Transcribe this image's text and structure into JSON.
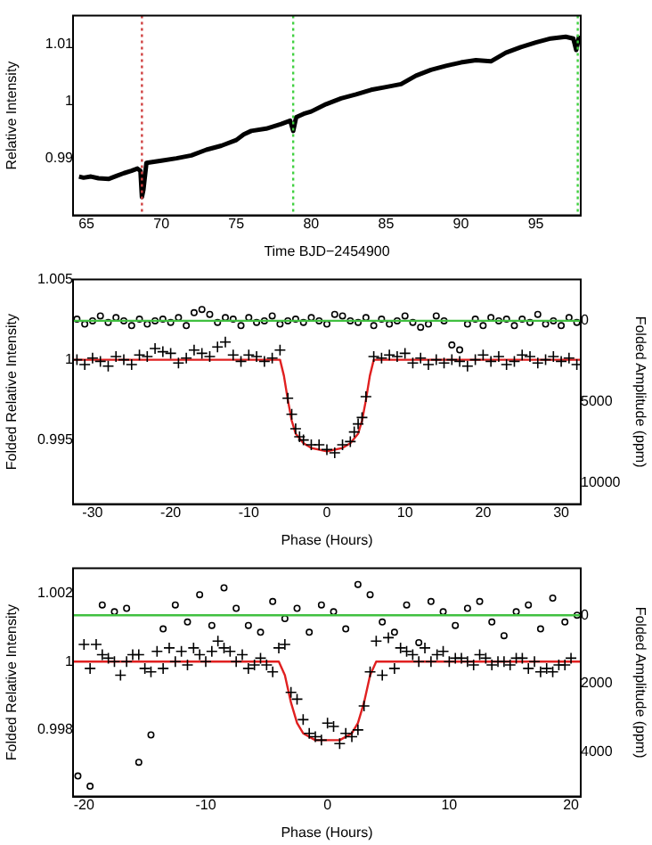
{
  "chart_data": [
    {
      "type": "line",
      "xlabel": "Time BJD−2454900",
      "ylabel": "Relative Intensity",
      "xlim": [
        64.1,
        98
      ],
      "ylim": [
        0.98,
        1.015
      ],
      "xticks": [
        65,
        70,
        75,
        80,
        85,
        90,
        95
      ],
      "yticks": [
        0.99,
        1,
        1.01
      ],
      "series": [
        {
          "color": "#000000",
          "x": [
            64.5,
            64.8,
            65.3,
            65.8,
            66.5,
            67,
            67.5,
            68,
            68.4,
            68.6,
            68.7,
            68.8,
            69,
            69.5,
            70,
            71,
            72,
            73,
            74,
            75,
            75.5,
            76,
            77,
            78,
            78.6,
            78.8,
            79,
            79.5,
            80,
            81,
            82,
            83,
            84,
            85,
            86,
            87,
            88,
            89,
            90,
            91,
            92,
            93,
            94,
            95,
            96,
            97,
            97.5,
            97.7,
            97.9
          ],
          "values": [
            0.9868,
            0.9866,
            0.9868,
            0.9865,
            0.9864,
            0.9869,
            0.9874,
            0.9878,
            0.9882,
            0.9878,
            0.9832,
            0.9845,
            0.9892,
            0.9894,
            0.9896,
            0.99,
            0.9905,
            0.9915,
            0.9922,
            0.9932,
            0.9942,
            0.9948,
            0.9952,
            0.996,
            0.9966,
            0.9948,
            0.9972,
            0.9978,
            0.9982,
            0.9995,
            1.0005,
            1.0012,
            1.002,
            1.0025,
            1.003,
            1.0045,
            1.0055,
            1.0062,
            1.0068,
            1.0072,
            1.007,
            1.0085,
            1.0095,
            1.0103,
            1.011,
            1.0113,
            1.011,
            1.009,
            1.0115
          ]
        }
      ],
      "ref_lines": [
        {
          "axis": "x",
          "value": 68.7,
          "color": "#d04040",
          "line_style": "dotted"
        },
        {
          "axis": "x",
          "value": 78.8,
          "color": "#40d040",
          "line_style": "dotted"
        },
        {
          "axis": "x",
          "value": 97.8,
          "color": "#40d040",
          "line_style": "dotted"
        }
      ]
    },
    {
      "type": "scatter",
      "xlabel": "Phase (Hours)",
      "ylabel": "Folded Relative Intensity",
      "y2label": "Folded Amplitude (ppm)",
      "xlim": [
        -32.5,
        32.5
      ],
      "ylim": [
        0.991,
        1.005
      ],
      "y2lim": [
        11350,
        -2555
      ],
      "xticks": [
        -30,
        -20,
        -10,
        0,
        10,
        20,
        30
      ],
      "yticks": [
        0.995,
        1,
        1.005
      ],
      "y2ticks": [
        0,
        5000,
        10000
      ],
      "series": [
        {
          "type": "line",
          "color": "#40c040",
          "axis": "y2",
          "x": [
            -32.5,
            32.5
          ],
          "values": [
            0,
            0
          ]
        },
        {
          "marker": "circle",
          "color": "#000000",
          "axis": "y2",
          "x": [
            -32,
            -31,
            -30,
            -29,
            -28,
            -27,
            -26,
            -25,
            -24,
            -23,
            -22,
            -21,
            -20,
            -19,
            -18,
            -17,
            -16,
            -15,
            -14,
            -13,
            -12,
            -11,
            -10,
            -9,
            -8,
            -7,
            -6,
            -5,
            -4,
            -3,
            -2,
            -1,
            0,
            1,
            2,
            3,
            4,
            5,
            6,
            7,
            8,
            9,
            10,
            11,
            12,
            13,
            14,
            15,
            16,
            17,
            18,
            19,
            20,
            21,
            22,
            23,
            24,
            25,
            26,
            27,
            28,
            29,
            30,
            31,
            32
          ],
          "values": [
            -100,
            200,
            0,
            -300,
            100,
            -200,
            0,
            300,
            -100,
            200,
            0,
            -100,
            100,
            -200,
            300,
            -500,
            -700,
            -400,
            100,
            -200,
            -100,
            300,
            -200,
            100,
            0,
            -300,
            200,
            0,
            -100,
            100,
            -200,
            0,
            200,
            -400,
            -300,
            0,
            100,
            -200,
            300,
            -100,
            200,
            0,
            -300,
            100,
            400,
            200,
            -300,
            0,
            1500,
            1800,
            200,
            -100,
            300,
            -200,
            0,
            -100,
            300,
            -100,
            100,
            -400,
            200,
            0,
            300,
            -200,
            100
          ]
        },
        {
          "marker": "cross",
          "color": "#000000",
          "x": [
            -32,
            -31,
            -30,
            -29,
            -28,
            -27,
            -26,
            -25,
            -24,
            -23,
            -22,
            -21,
            -20,
            -19,
            -18,
            -17,
            -16,
            -15,
            -14,
            -13,
            -12,
            -11,
            -10,
            -9,
            -8,
            -7,
            -6,
            -5,
            -4.5,
            -4,
            -3.5,
            -3,
            -2,
            -1,
            0,
            1,
            2,
            3,
            3.5,
            4,
            4.5,
            5,
            6,
            7,
            8,
            9,
            10,
            11,
            12,
            13,
            14,
            15,
            16,
            17,
            18,
            19,
            20,
            21,
            22,
            23,
            24,
            25,
            26,
            27,
            28,
            29,
            30,
            31,
            32
          ],
          "values": [
            1.0,
            0.9997,
            1.0001,
            0.9999,
            0.9996,
            1.0002,
            1.0,
            0.9997,
            1.0003,
            1.0002,
            1.0007,
            1.0005,
            1.0004,
            0.9998,
            1.0001,
            1.0006,
            1.0004,
            1.0002,
            1.0008,
            1.0011,
            1.0003,
            0.9999,
            1.0003,
            1.0002,
            0.9999,
            1.0001,
            1.0006,
            0.9976,
            0.9966,
            0.9957,
            0.9952,
            0.995,
            0.9947,
            0.9947,
            0.9944,
            0.9942,
            0.9947,
            0.9949,
            0.9955,
            0.996,
            0.9964,
            0.9977,
            1.0002,
            1.0001,
            1.0003,
            1.0002,
            1.0004,
            0.9998,
            1.0001,
            0.9997,
            1.0,
            0.9998,
            1.0,
            0.9999,
            0.9996,
            1.0,
            1.0003,
            0.9999,
            1.0002,
            0.9997,
            0.9999,
            1.0003,
            1.0002,
            0.9998,
            1.0,
            1.0002,
            0.9999,
            1.0001,
            0.9997
          ]
        },
        {
          "type": "line",
          "color": "#e02020",
          "x": [
            -32.5,
            -6,
            -5.5,
            -5,
            -4.5,
            -4,
            -3,
            -2,
            0,
            2,
            3,
            4,
            4.5,
            5,
            5.5,
            6,
            32.5
          ],
          "values": [
            1,
            1,
            0.999,
            0.9975,
            0.9962,
            0.9954,
            0.9948,
            0.9945,
            0.9943,
            0.9945,
            0.9948,
            0.9954,
            0.9962,
            0.9975,
            0.999,
            1,
            1
          ]
        }
      ]
    },
    {
      "type": "scatter",
      "xlabel": "Phase (Hours)",
      "ylabel": "Folded Relative Intensity",
      "y2label": "Folded Amplitude (ppm)",
      "xlim": [
        -20.9,
        20.8
      ],
      "ylim": [
        0.99605,
        1.00273
      ],
      "y2lim": [
        5300,
        -1370
      ],
      "xticks": [
        -20,
        -10,
        0,
        10,
        20
      ],
      "yticks": [
        0.998,
        1,
        1.002
      ],
      "y2ticks": [
        0,
        2000,
        4000
      ],
      "series": [
        {
          "type": "line",
          "color": "#40c040",
          "axis": "y2",
          "x": [
            -20.9,
            20.8
          ],
          "values": [
            0,
            0
          ]
        },
        {
          "marker": "circle",
          "color": "#000000",
          "axis": "y2",
          "x": [
            -20.5,
            -19.5,
            -18.5,
            -17.5,
            -16.5,
            -15.5,
            -14.5,
            -13.5,
            -12.5,
            -11.5,
            -10.5,
            -9.5,
            -8.5,
            -7.5,
            -6.5,
            -5.5,
            -4.5,
            -3.5,
            -2.5,
            -1.5,
            -0.5,
            0.5,
            1.5,
            2.5,
            3.5,
            4.5,
            5.5,
            6.5,
            7.5,
            8.5,
            9.5,
            10.5,
            11.5,
            12.5,
            13.5,
            14.5,
            15.5,
            16.5,
            17.5,
            18.5,
            19.5,
            20.5
          ],
          "values": [
            4700,
            5000,
            -300,
            -100,
            -200,
            4300,
            3500,
            400,
            -300,
            200,
            -600,
            300,
            -800,
            -200,
            300,
            500,
            -400,
            100,
            -200,
            500,
            -300,
            -100,
            400,
            -900,
            -600,
            200,
            500,
            -300,
            800,
            -400,
            -100,
            300,
            -200,
            -400,
            200,
            600,
            -100,
            -300,
            400,
            -500,
            200,
            0
          ]
        },
        {
          "marker": "cross",
          "color": "#000000",
          "x": [
            -20,
            -19,
            -18,
            -17,
            -16,
            -15,
            -14,
            -13,
            -12,
            -11,
            -10,
            -9,
            -8,
            -7,
            -6,
            -5,
            -4,
            -3,
            -2,
            -1,
            0,
            1,
            2,
            3,
            4,
            5,
            6,
            7,
            8,
            9,
            10,
            11,
            12,
            13,
            14,
            15,
            16,
            17,
            18,
            19,
            20
          ],
          "values": [
            1.0005,
            1.0005,
            1.0001,
            0.9996,
            1.0002,
            0.9998,
            1.0003,
            1.0004,
            1.0003,
            1.0004,
            1.0,
            1.0006,
            1.0003,
            1.0002,
            0.9999,
            0.9999,
            1.0004,
            0.9991,
            0.9983,
            0.9978,
            0.9982,
            0.9976,
            0.9978,
            0.9987,
            1.0006,
            1.0007,
            1.0004,
            1.0002,
            1.0004,
            1.0002,
            1.0,
            1.0001,
            0.9999,
            1.0001,
            1.0,
            0.9999,
            1.0001,
            1.0,
            0.9998,
            0.9999,
            1.0001
          ]
        },
        {
          "marker": "cross",
          "color": "#000000",
          "x": [
            -19.5,
            -18.5,
            -17.5,
            -16.5,
            -15.5,
            -14.5,
            -13.5,
            -12.5,
            -11.5,
            -10.5,
            -9.5,
            -8.5,
            -7.5,
            -6.5,
            -5.5,
            -4.5,
            -3.5,
            -2.5,
            -1.5,
            -0.5,
            0.5,
            1.5,
            2.5,
            3.5,
            4.5,
            5.5,
            6.5,
            7.5,
            8.5,
            9.5,
            10.5,
            11.5,
            12.5,
            13.5,
            14.5,
            15.5,
            16.5,
            17.5,
            18.5,
            19.5
          ],
          "values": [
            0.9998,
            1.0002,
            1.0,
            1.0,
            1.0002,
            0.9997,
            0.9998,
            1.0,
            0.9999,
            1.0002,
            1.0003,
            1.0004,
            1.0,
            0.9998,
            1.0001,
            0.9997,
            1.0005,
            0.9989,
            0.9979,
            0.9977,
            0.9981,
            0.9979,
            0.998,
            0.9997,
            0.9996,
            0.9998,
            1.0003,
            1.0,
            1.0,
            1.0003,
            1.0001,
            1.0,
            1.0002,
            0.9999,
            1.0,
            1.0001,
            0.9998,
            0.9997,
            0.9997,
            0.9999
          ]
        },
        {
          "type": "line",
          "color": "#e02020",
          "x": [
            -20.9,
            -4,
            -3.5,
            -3,
            -2.5,
            -2,
            -1,
            0,
            1,
            2,
            2.5,
            3,
            3.5,
            4,
            20.8
          ],
          "values": [
            1,
            1,
            0.9996,
            0.9988,
            0.9982,
            0.9979,
            0.9977,
            0.9977,
            0.9977,
            0.9979,
            0.9982,
            0.9988,
            0.9996,
            1,
            1
          ]
        }
      ]
    }
  ]
}
